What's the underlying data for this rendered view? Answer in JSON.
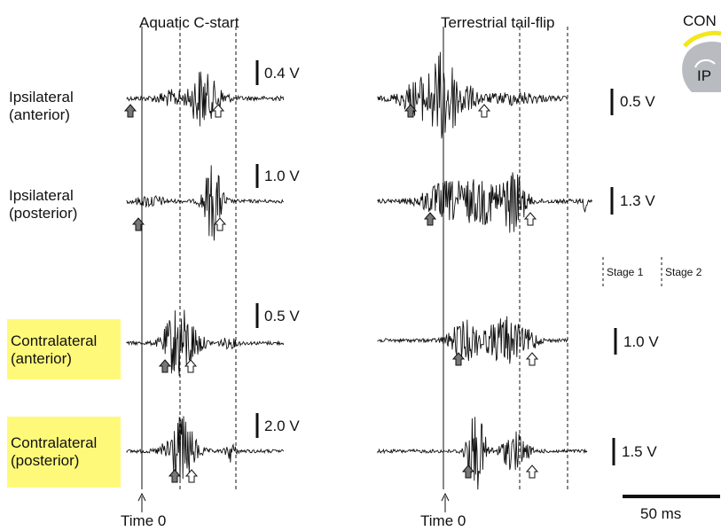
{
  "titles": {
    "aquatic": "Aquatic C-start",
    "terrestrial": "Terrestrial tail-flip"
  },
  "rows": [
    {
      "line1": "Ipsilateral",
      "line2": "(anterior)",
      "highlight": false,
      "scale_aquatic": "0.4 V",
      "scale_terrestrial": "0.5 V"
    },
    {
      "line1": "Ipsilateral",
      "line2": "(posterior)",
      "highlight": false,
      "scale_aquatic": "1.0 V",
      "scale_terrestrial": "1.3 V"
    },
    {
      "line1": "Contralateral",
      "line2": "(anterior)",
      "highlight": true,
      "scale_aquatic": "0.5 V",
      "scale_terrestrial": "1.0 V"
    },
    {
      "line1": "Contralateral",
      "line2": "(posterior)",
      "highlight": true,
      "scale_aquatic": "2.0 V",
      "scale_terrestrial": "1.5 V"
    }
  ],
  "time_label": "Time 0",
  "stages": {
    "stage1": "Stage 1",
    "stage2": "Stage 2"
  },
  "time_scale_bar": "50 ms",
  "inset": {
    "top_label": "CON",
    "bottom_label": "IP"
  },
  "colors": {
    "highlight": "#fff97a",
    "inset_arc": "#f2e61f",
    "inset_body": "#b8bcc0",
    "trace": "#111111"
  }
}
